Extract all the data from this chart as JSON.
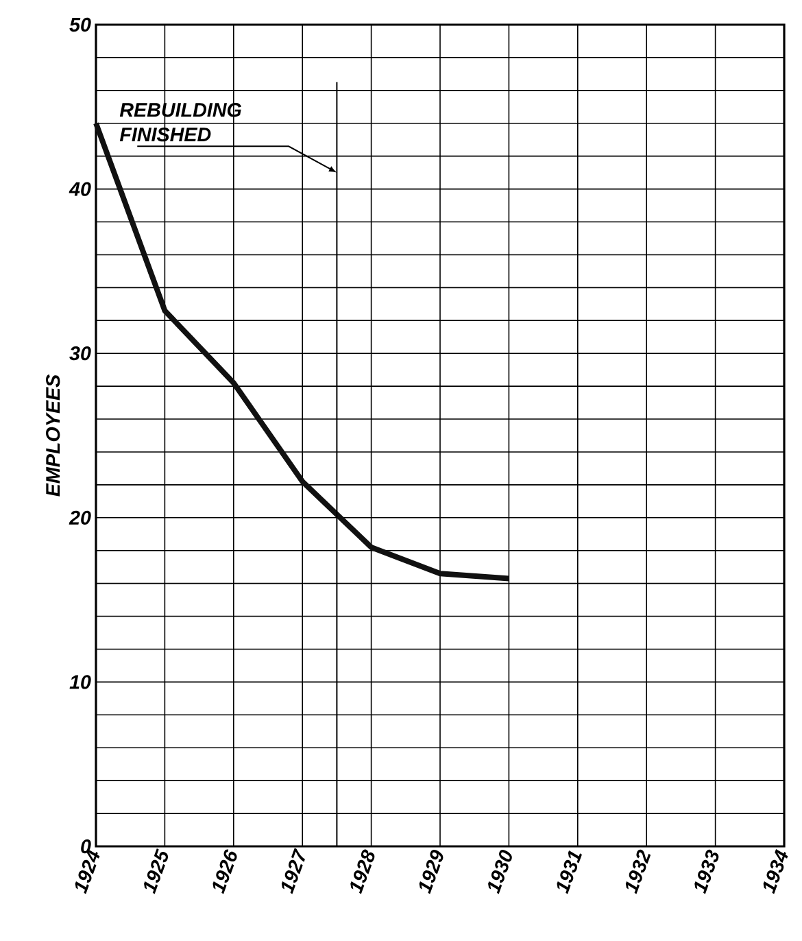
{
  "chart_data": {
    "type": "line",
    "ylabel": "EMPLOYEES",
    "x": [
      1924,
      1925,
      1926,
      1927,
      1928,
      1929,
      1930
    ],
    "values": [
      44,
      32.6,
      28.2,
      22.2,
      18.2,
      16.6,
      16.3
    ],
    "color": "#111111",
    "xlim": [
      1924,
      1934
    ],
    "xticks": [
      1924,
      1925,
      1926,
      1927,
      1928,
      1929,
      1930,
      1931,
      1932,
      1933,
      1934
    ],
    "ylim": [
      0,
      50
    ],
    "yticks": [
      0,
      {
        "value": 2,
        "label": null
      },
      {
        "value": 4,
        "label": null
      },
      {
        "value": 6,
        "label": null
      },
      {
        "value": 8,
        "label": null
      },
      10,
      {
        "value": 12,
        "label": null
      },
      {
        "value": 14,
        "label": null
      },
      {
        "value": 16,
        "label": null
      },
      {
        "value": 18,
        "label": null
      },
      20,
      {
        "value": 22,
        "label": null
      },
      {
        "value": 24,
        "label": null
      },
      {
        "value": 26,
        "label": null
      },
      {
        "value": 28,
        "label": null
      },
      30,
      {
        "value": 32,
        "label": null
      },
      {
        "value": 34,
        "label": null
      },
      {
        "value": 36,
        "label": null
      },
      {
        "value": 38,
        "label": null
      },
      40,
      {
        "value": 42,
        "label": null
      },
      {
        "value": 44,
        "label": null
      },
      {
        "value": 46,
        "label": null
      },
      {
        "value": 48,
        "label": null
      },
      50
    ],
    "grid": true,
    "ref_lines": [
      {
        "axis": "x",
        "value": 1927.5,
        "label": "REBUILDING FINISHED"
      }
    ]
  }
}
